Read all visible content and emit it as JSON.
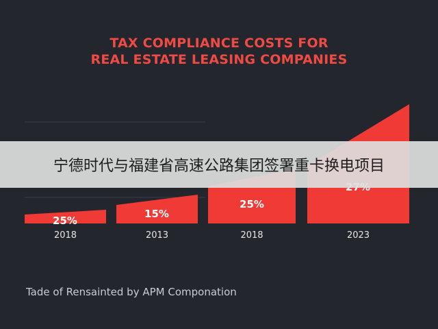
{
  "chart_data": {
    "type": "bar",
    "title_line1": "TAX COMPLIANCE COSTS FOR",
    "title_line2": "REAL ESTATE LEASING COMPANIES",
    "categories": [
      "2018",
      "2013",
      "2018",
      "2023"
    ],
    "values": [
      25,
      15,
      25,
      27
    ],
    "value_labels": [
      "25%",
      "15%",
      "25%",
      "27%"
    ],
    "bar_color": "#f03a36",
    "label_color": "#ffffff",
    "tick_color": "#e6e6e6",
    "grid_color": "#3a3e46"
  },
  "banner": {
    "text": "宁德时代与福建省高速公路集团签署重卡换电项目"
  },
  "footer": {
    "text": "Tade of Rensainted by APM Componation"
  }
}
